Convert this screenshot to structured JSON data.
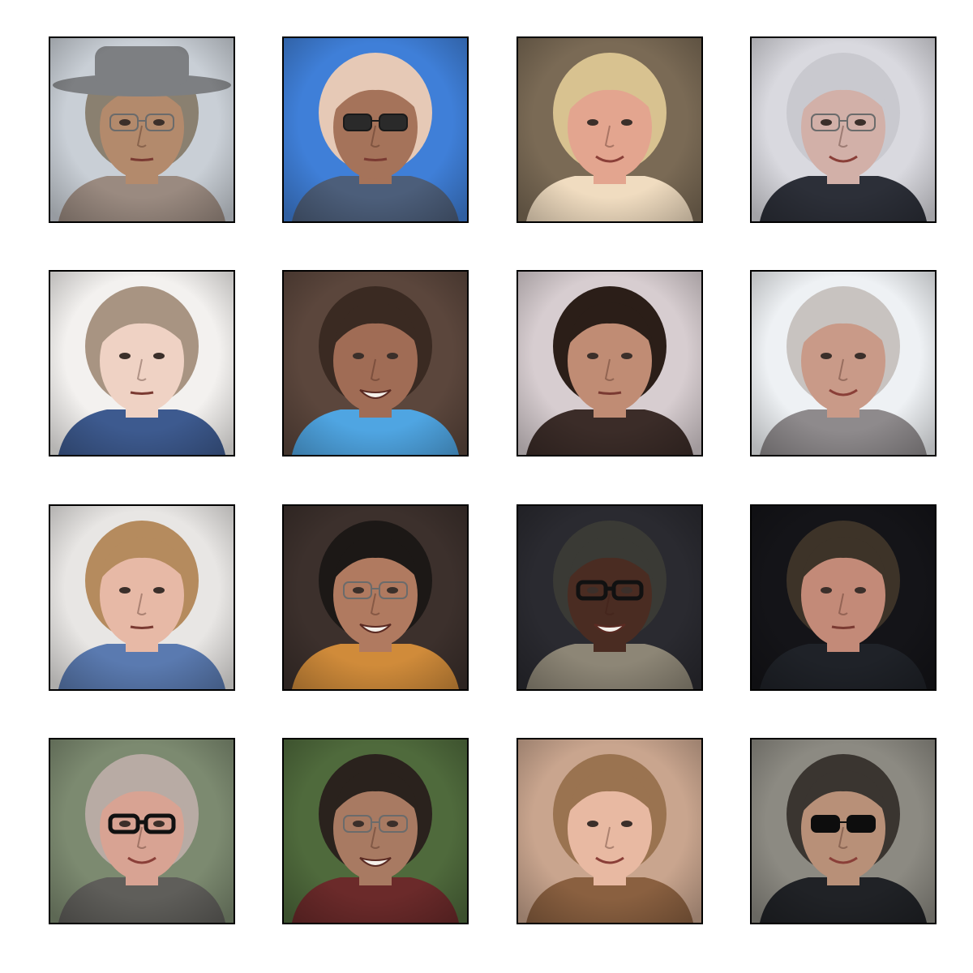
{
  "figure": {
    "grid": {
      "rows": 4,
      "cols": 4
    },
    "tiles": [
      {
        "background": "#c9cfd6",
        "hair": "#8a8070",
        "skin": "#b38a6c",
        "shirt": "#9a8a80",
        "hat": true,
        "hat_color": "#7d7f82",
        "glasses": "clear",
        "mouth": "neutral"
      },
      {
        "background": "#3f7fd8",
        "hair": "#e6c9b6",
        "skin": "#a5735a",
        "shirt": "#4c5e7a",
        "hat": false,
        "glasses": "dark",
        "mouth": "neutral"
      },
      {
        "background": "#7a6a55",
        "hair": "#d8c290",
        "skin": "#e3a58f",
        "shirt": "#f0dcc0",
        "hat": false,
        "glasses": "none",
        "mouth": "smile"
      },
      {
        "background": "#d9d9df",
        "hair": "#c9c9cf",
        "skin": "#d2b0a8",
        "shirt": "#2c2f38",
        "hat": false,
        "glasses": "clear",
        "mouth": "smile"
      },
      {
        "background": "#f3f1ef",
        "hair": "#a89482",
        "skin": "#efd2c4",
        "shirt": "#3d5a8f",
        "hat": false,
        "glasses": "none",
        "mouth": "neutral"
      },
      {
        "background": "#5b463c",
        "hair": "#3a2a22",
        "skin": "#a06c55",
        "shirt": "#4fa5e2",
        "hat": false,
        "glasses": "none",
        "mouth": "grin"
      },
      {
        "background": "#d7cdd0",
        "hair": "#2b1e18",
        "skin": "#c08c74",
        "shirt": "#3b2c28",
        "hat": false,
        "glasses": "none",
        "mouth": "neutral"
      },
      {
        "background": "#eef1f4",
        "hair": "#c8c3c0",
        "skin": "#c99a88",
        "shirt": "#8e8a8c",
        "hat": false,
        "glasses": "none",
        "mouth": "smile"
      },
      {
        "background": "#e8e6e4",
        "hair": "#b58b5e",
        "skin": "#e7b9a6",
        "shirt": "#5a7ab0",
        "hat": false,
        "glasses": "none",
        "mouth": "neutral"
      },
      {
        "background": "#3c302c",
        "hair": "#1c1816",
        "skin": "#b07a60",
        "shirt": "#d08b3a",
        "hat": false,
        "glasses": "clear",
        "mouth": "grin"
      },
      {
        "background": "#2a2a30",
        "hair": "#3a3a35",
        "skin": "#4a2c22",
        "shirt": "#8d8676",
        "hat": false,
        "glasses": "dark-frame",
        "mouth": "grin"
      },
      {
        "background": "#141418",
        "hair": "#3d3328",
        "skin": "#c38a78",
        "shirt": "#1f2228",
        "hat": false,
        "glasses": "none",
        "mouth": "neutral"
      },
      {
        "background": "#7c8a70",
        "hair": "#b8aba4",
        "skin": "#d8a393",
        "shirt": "#5f5e5a",
        "hat": false,
        "glasses": "dark-frame",
        "mouth": "smile"
      },
      {
        "background": "#4f6a3c",
        "hair": "#2a221d",
        "skin": "#a87a62",
        "shirt": "#6b2a2a",
        "hat": false,
        "glasses": "clear",
        "mouth": "grin"
      },
      {
        "background": "#c9a58e",
        "hair": "#9a7350",
        "skin": "#e8b9a2",
        "shirt": "#8a6040",
        "hat": false,
        "glasses": "none",
        "mouth": "smile"
      },
      {
        "background": "#8c8a82",
        "hair": "#3a3530",
        "skin": "#b89078",
        "shirt": "#202226",
        "hat": false,
        "glasses": "sunglasses",
        "mouth": "smile"
      }
    ]
  }
}
